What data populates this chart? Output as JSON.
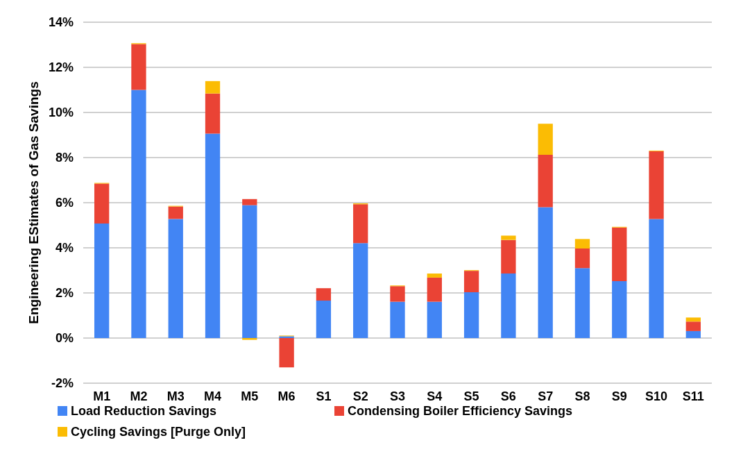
{
  "chart_data": {
    "type": "bar",
    "ylabel": "Engineering EStimates of Gas Savings",
    "stacked": true,
    "categories": [
      "M1",
      "M2",
      "M3",
      "M4",
      "M5",
      "M6",
      "S1",
      "S2",
      "S3",
      "S4",
      "S5",
      "S6",
      "S7",
      "S8",
      "S9",
      "S10",
      "S11"
    ],
    "series": [
      {
        "name": "Load Reduction Savings",
        "color": "#4285f4",
        "values": [
          5.08,
          11.0,
          5.28,
          9.06,
          5.89,
          0.08,
          1.66,
          4.21,
          1.61,
          1.61,
          2.03,
          2.86,
          5.8,
          3.1,
          2.52,
          5.28,
          0.31
        ]
      },
      {
        "name": "Condensing Boiler Efficiency Savings",
        "color": "#ea4335",
        "values": [
          1.77,
          2.03,
          0.55,
          1.78,
          0.27,
          -1.3,
          0.55,
          1.72,
          0.69,
          1.07,
          0.95,
          1.49,
          2.32,
          0.87,
          2.38,
          3.0,
          0.42
        ]
      },
      {
        "name": "Cycling Savings [Purge Only]",
        "color": "#fbbc04",
        "values": [
          0.03,
          0.04,
          0.03,
          0.55,
          -0.08,
          0.03,
          0.0,
          0.04,
          0.03,
          0.18,
          0.03,
          0.19,
          1.38,
          0.42,
          0.03,
          0.03,
          0.18
        ]
      }
    ],
    "ylim": [
      -2,
      14
    ],
    "yticks": [
      {
        "value": -2,
        "label": "-2%"
      },
      {
        "value": 0,
        "label": "0%"
      },
      {
        "value": 2,
        "label": "2%"
      },
      {
        "value": 4,
        "label": "4%"
      },
      {
        "value": 6,
        "label": "6%"
      },
      {
        "value": 8,
        "label": "8%"
      },
      {
        "value": 10,
        "label": "10%"
      },
      {
        "value": 12,
        "label": "12%"
      },
      {
        "value": 14,
        "label": "14%"
      }
    ],
    "grid": "y",
    "legend": "bottom left"
  }
}
